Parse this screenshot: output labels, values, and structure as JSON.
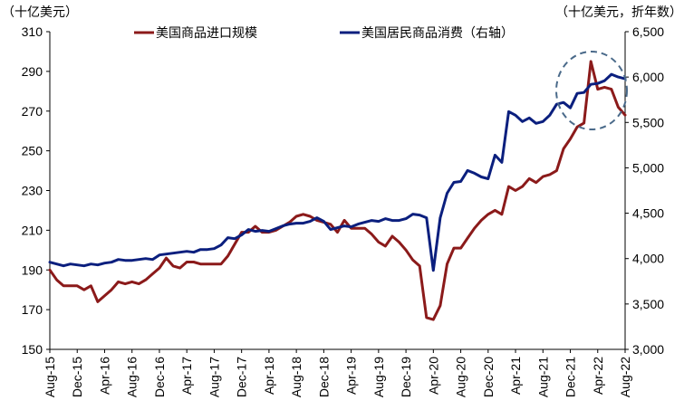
{
  "chart_data": {
    "type": "line",
    "left_unit": "（十亿美元）",
    "right_unit": "（十亿美元，折年数）",
    "x_tick_labels": [
      "Aug-15",
      "Dec-15",
      "Apr-16",
      "Aug-16",
      "Dec-16",
      "Apr-17",
      "Aug-17",
      "Dec-17",
      "Apr-18",
      "Aug-18",
      "Dec-18",
      "Apr-19",
      "Aug-19",
      "Dec-19",
      "Apr-20",
      "Aug-20",
      "Dec-20",
      "Apr-21",
      "Aug-21",
      "Dec-21",
      "Apr-22",
      "Aug-22"
    ],
    "y_left": {
      "min": 150,
      "max": 310,
      "ticks": [
        150,
        170,
        190,
        210,
        230,
        250,
        270,
        290,
        310
      ]
    },
    "y_right": {
      "min": 3000,
      "max": 6500,
      "ticks": [
        3000,
        3500,
        4000,
        4500,
        5000,
        5500,
        6000,
        6500
      ],
      "tick_labels": [
        "3,000",
        "3,500",
        "4,000",
        "4,500",
        "5,000",
        "5,500",
        "6,000",
        "6,500"
      ]
    },
    "x": [
      "2015-08",
      "2015-09",
      "2015-10",
      "2015-11",
      "2015-12",
      "2016-01",
      "2016-02",
      "2016-03",
      "2016-04",
      "2016-05",
      "2016-06",
      "2016-07",
      "2016-08",
      "2016-09",
      "2016-10",
      "2016-11",
      "2016-12",
      "2017-01",
      "2017-02",
      "2017-03",
      "2017-04",
      "2017-05",
      "2017-06",
      "2017-07",
      "2017-08",
      "2017-09",
      "2017-10",
      "2017-11",
      "2017-12",
      "2018-01",
      "2018-02",
      "2018-03",
      "2018-04",
      "2018-05",
      "2018-06",
      "2018-07",
      "2018-08",
      "2018-09",
      "2018-10",
      "2018-11",
      "2018-12",
      "2019-01",
      "2019-02",
      "2019-03",
      "2019-04",
      "2019-05",
      "2019-06",
      "2019-07",
      "2019-08",
      "2019-09",
      "2019-10",
      "2019-11",
      "2019-12",
      "2020-01",
      "2020-02",
      "2020-03",
      "2020-04",
      "2020-05",
      "2020-06",
      "2020-07",
      "2020-08",
      "2020-09",
      "2020-10",
      "2020-11",
      "2020-12",
      "2021-01",
      "2021-02",
      "2021-03",
      "2021-04",
      "2021-05",
      "2021-06",
      "2021-07",
      "2021-08",
      "2021-09",
      "2021-10",
      "2021-11",
      "2021-12",
      "2022-01",
      "2022-02",
      "2022-03",
      "2022-04",
      "2022-05",
      "2022-06",
      "2022-07",
      "2022-08"
    ],
    "series": [
      {
        "name": "美国商品进口规模",
        "axis": "left",
        "color": "#8B1A1A",
        "values": [
          190,
          185,
          182,
          182,
          182,
          180,
          182,
          174,
          177,
          180,
          184,
          183,
          184,
          183,
          185,
          188,
          191,
          196,
          192,
          191,
          194,
          194,
          193,
          193,
          193,
          193,
          197,
          203,
          209,
          209,
          212,
          209,
          209,
          210,
          212,
          214,
          217,
          218,
          217,
          215,
          214,
          213,
          209,
          215,
          211,
          211,
          211,
          208,
          204,
          202,
          207,
          204,
          200,
          195,
          192,
          166,
          165,
          172,
          193,
          201,
          201,
          206,
          211,
          215,
          218,
          220,
          218,
          232,
          230,
          232,
          236,
          234,
          237,
          238,
          240,
          251,
          256,
          262,
          264,
          295,
          281,
          282,
          281,
          272,
          268
        ]
      },
      {
        "name": "美国居民商品消费（右轴）",
        "axis": "right",
        "color": "#0B1F7E",
        "values": [
          3960,
          3940,
          3920,
          3940,
          3930,
          3920,
          3940,
          3930,
          3950,
          3960,
          3990,
          3980,
          3980,
          3990,
          4000,
          3990,
          4040,
          4050,
          4060,
          4070,
          4080,
          4070,
          4100,
          4100,
          4110,
          4150,
          4230,
          4220,
          4260,
          4320,
          4300,
          4310,
          4300,
          4330,
          4360,
          4380,
          4390,
          4390,
          4410,
          4450,
          4410,
          4320,
          4340,
          4360,
          4350,
          4380,
          4400,
          4420,
          4410,
          4440,
          4420,
          4420,
          4440,
          4490,
          4480,
          4450,
          3870,
          4450,
          4720,
          4840,
          4850,
          4970,
          4940,
          4900,
          4880,
          5140,
          5060,
          5620,
          5580,
          5510,
          5550,
          5490,
          5510,
          5580,
          5700,
          5720,
          5660,
          5820,
          5830,
          5920,
          5930,
          5960,
          6030,
          6000,
          5980
        ]
      }
    ],
    "annotation": "dashed circle highlighting 2022 peak"
  }
}
